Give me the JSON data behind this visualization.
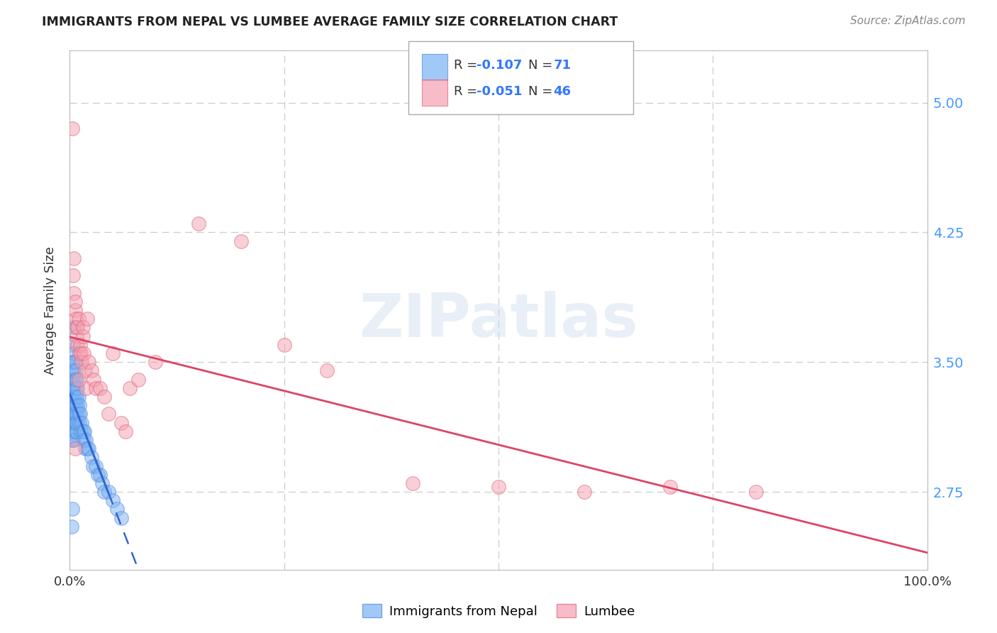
{
  "title": "IMMIGRANTS FROM NEPAL VS LUMBEE AVERAGE FAMILY SIZE CORRELATION CHART",
  "source": "Source: ZipAtlas.com",
  "ylabel": "Average Family Size",
  "xlim": [
    0,
    1.0
  ],
  "ylim": [
    2.3,
    5.3
  ],
  "yticks": [
    2.75,
    3.5,
    4.25,
    5.0
  ],
  "ytick_labels": [
    "2.75",
    "3.50",
    "4.25",
    "5.00"
  ],
  "nepal_color": "#7ab3f5",
  "nepal_color_edge": "#5588dd",
  "lumbee_color": "#f5a0b0",
  "lumbee_color_edge": "#dd6680",
  "nepal_trend_color": "#3366cc",
  "lumbee_trend_color": "#dd4466",
  "watermark": "ZIPatlas",
  "nepal_x": [
    0.001,
    0.001,
    0.001,
    0.002,
    0.002,
    0.002,
    0.002,
    0.003,
    0.003,
    0.003,
    0.003,
    0.003,
    0.003,
    0.003,
    0.004,
    0.004,
    0.004,
    0.004,
    0.004,
    0.004,
    0.004,
    0.005,
    0.005,
    0.005,
    0.005,
    0.005,
    0.005,
    0.006,
    0.006,
    0.006,
    0.006,
    0.006,
    0.007,
    0.007,
    0.007,
    0.007,
    0.008,
    0.008,
    0.008,
    0.008,
    0.009,
    0.009,
    0.009,
    0.01,
    0.01,
    0.011,
    0.011,
    0.012,
    0.013,
    0.014,
    0.015,
    0.016,
    0.017,
    0.018,
    0.019,
    0.02,
    0.022,
    0.025,
    0.027,
    0.03,
    0.033,
    0.035,
    0.038,
    0.04,
    0.045,
    0.05,
    0.055,
    0.06,
    0.002,
    0.003,
    0.005
  ],
  "nepal_y": [
    3.2,
    3.3,
    3.1,
    3.4,
    3.25,
    3.15,
    3.05,
    3.5,
    3.35,
    3.4,
    3.3,
    3.2,
    3.1,
    3.45,
    3.6,
    3.5,
    3.4,
    3.3,
    3.2,
    3.15,
    3.05,
    3.55,
    3.45,
    3.35,
    3.25,
    3.15,
    3.05,
    3.5,
    3.4,
    3.3,
    3.2,
    3.1,
    3.45,
    3.35,
    3.25,
    3.15,
    3.4,
    3.3,
    3.2,
    3.1,
    3.35,
    3.25,
    3.15,
    3.3,
    3.2,
    3.25,
    3.15,
    3.2,
    3.1,
    3.15,
    3.1,
    3.05,
    3.1,
    3.0,
    3.05,
    3.0,
    3.0,
    2.95,
    2.9,
    2.9,
    2.85,
    2.85,
    2.8,
    2.75,
    2.75,
    2.7,
    2.65,
    2.6,
    2.55,
    2.65,
    3.7
  ],
  "lumbee_x": [
    0.003,
    0.004,
    0.005,
    0.005,
    0.006,
    0.006,
    0.007,
    0.008,
    0.008,
    0.009,
    0.009,
    0.01,
    0.011,
    0.012,
    0.013,
    0.014,
    0.015,
    0.015,
    0.016,
    0.018,
    0.019,
    0.02,
    0.022,
    0.025,
    0.028,
    0.03,
    0.035,
    0.04,
    0.045,
    0.05,
    0.06,
    0.065,
    0.07,
    0.08,
    0.1,
    0.15,
    0.2,
    0.25,
    0.3,
    0.4,
    0.5,
    0.6,
    0.7,
    0.8,
    0.006,
    0.01
  ],
  "lumbee_y": [
    4.85,
    4.0,
    3.9,
    4.1,
    3.8,
    3.85,
    3.75,
    3.7,
    3.65,
    3.6,
    3.7,
    3.75,
    3.55,
    3.6,
    3.55,
    3.5,
    3.65,
    3.7,
    3.55,
    3.45,
    3.35,
    3.75,
    3.5,
    3.45,
    3.4,
    3.35,
    3.35,
    3.3,
    3.2,
    3.55,
    3.15,
    3.1,
    3.35,
    3.4,
    3.5,
    4.3,
    4.2,
    3.6,
    3.45,
    2.8,
    2.78,
    2.75,
    2.78,
    2.75,
    3.0,
    3.4
  ],
  "nepal_trend_x0": 0.0,
  "nepal_trend_x_solid_end": 0.045,
  "nepal_trend_x1": 1.0,
  "lumbee_trend_x0": 0.0,
  "lumbee_trend_x1": 1.0
}
